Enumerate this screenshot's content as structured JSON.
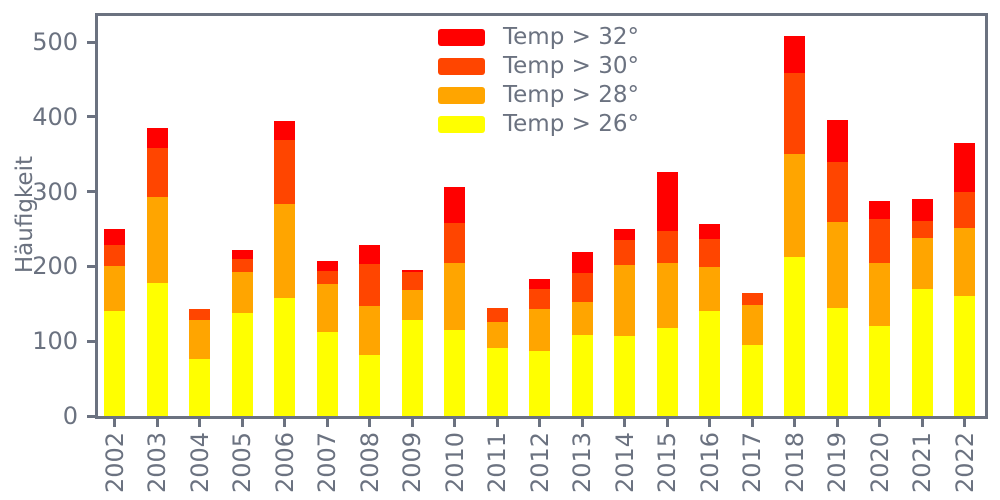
{
  "figure": {
    "ylabel": "Häufigkeit",
    "background_color": "#ffffff",
    "axis_color": "#6b7280",
    "text_color": "#6b7280"
  },
  "legend": {
    "items": [
      {
        "label": "Temp > 32°",
        "color": "#ff0000",
        "name": "temp-gt-32"
      },
      {
        "label": "Temp > 30°",
        "color": "#ff4500",
        "name": "temp-gt-30"
      },
      {
        "label": "Temp > 28°",
        "color": "#ffa500",
        "name": "temp-gt-28"
      },
      {
        "label": "Temp > 26°",
        "color": "#ffff00",
        "name": "temp-gt-26"
      }
    ]
  },
  "chart_data": {
    "type": "bar",
    "stacked": true,
    "title": "",
    "xlabel": "",
    "ylabel": "Häufigkeit",
    "categories": [
      "2002",
      "2003",
      "2004",
      "2005",
      "2006",
      "2007",
      "2008",
      "2009",
      "2010",
      "2011",
      "2012",
      "2013",
      "2014",
      "2015",
      "2016",
      "2017",
      "2018",
      "2019",
      "2020",
      "2021",
      "2022"
    ],
    "series": [
      {
        "name": "Temp > 26°",
        "color": "#ffff00",
        "values": [
          140,
          178,
          76,
          138,
          158,
          113,
          81,
          128,
          115,
          91,
          87,
          108,
          107,
          118,
          140,
          95,
          213,
          145,
          120,
          170,
          160
        ]
      },
      {
        "name": "Temp > 28°",
        "color": "#ffa500",
        "values": [
          60,
          115,
          53,
          54,
          126,
          64,
          66,
          41,
          90,
          35,
          56,
          44,
          95,
          86,
          59,
          53,
          137,
          115,
          85,
          68,
          92
        ]
      },
      {
        "name": "Temp > 30°",
        "color": "#ff4500",
        "values": [
          29,
          65,
          14,
          18,
          85,
          17,
          57,
          24,
          53,
          18,
          27,
          39,
          33,
          44,
          38,
          16,
          109,
          80,
          58,
          23,
          47
        ]
      },
      {
        "name": "Temp > 32°",
        "color": "#ff0000",
        "values": [
          21,
          27,
          0,
          12,
          26,
          14,
          25,
          2,
          49,
          0,
          13,
          29,
          15,
          78,
          20,
          0,
          49,
          56,
          24,
          29,
          66
        ]
      }
    ],
    "totals": [
      250,
      385,
      143,
      222,
      395,
      208,
      229,
      195,
      307,
      144,
      183,
      220,
      250,
      326,
      257,
      164,
      508,
      396,
      287,
      290,
      365
    ],
    "yticks": [
      0,
      100,
      200,
      300,
      400,
      500
    ],
    "ylim": [
      0,
      535
    ],
    "grid": false,
    "legend_position": "upper center inside plot",
    "x_tick_rotation_deg": 90
  }
}
